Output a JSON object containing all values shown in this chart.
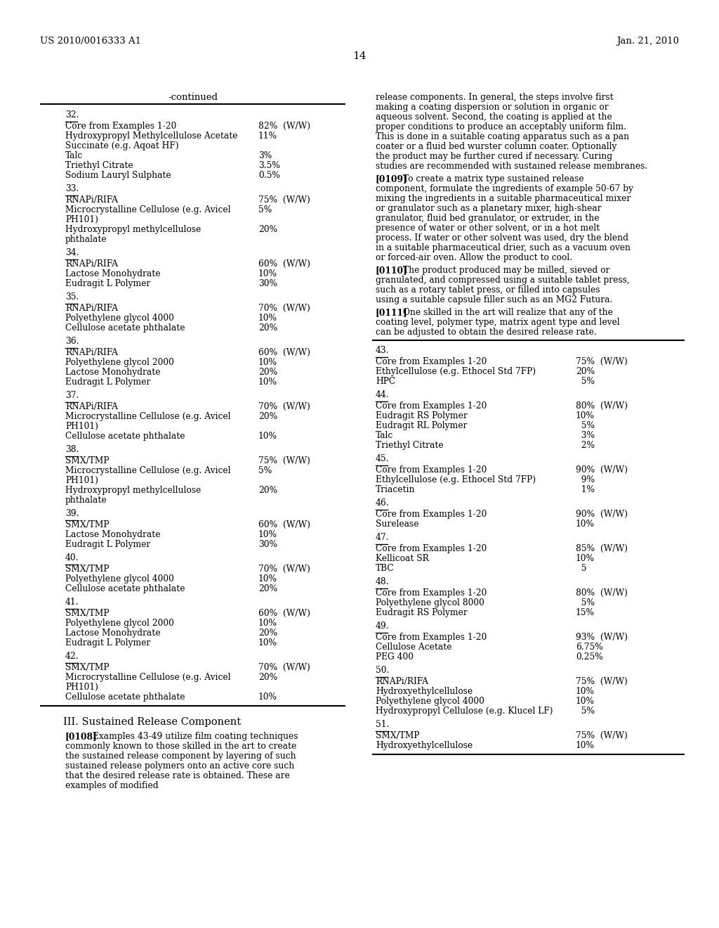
{
  "bg_color": "#ffffff",
  "header_left": "US 2010/0016333 A1",
  "header_right": "Jan. 21, 2010",
  "page_number": "14",
  "left_sections": [
    {
      "num": "32.",
      "items": [
        [
          "Core from Examples 1-20",
          "82%  (W/W)"
        ],
        [
          "Hydroxypropyl Methylcellulose Acetate",
          "11%"
        ],
        [
          "Succinate (e.g. Aqoat HF)",
          ""
        ],
        [
          "Talc",
          "3%"
        ],
        [
          "Triethyl Citrate",
          "3.5%"
        ],
        [
          "Sodium Lauryl Sulphate",
          "0.5%"
        ]
      ]
    },
    {
      "num": "33.",
      "items": [
        [
          "RNAPi/RIFA",
          "75%  (W/W)"
        ],
        [
          "Microcrystalline Cellulose (e.g. Avicel",
          "5%"
        ],
        [
          "PH101)",
          ""
        ],
        [
          "Hydroxypropyl methylcellulose",
          "20%"
        ],
        [
          "phthalate",
          ""
        ]
      ]
    },
    {
      "num": "34.",
      "items": [
        [
          "RNAPi/RIFA",
          "60%  (W/W)"
        ],
        [
          "Lactose Monohydrate",
          "10%"
        ],
        [
          "Eudragit L Polymer",
          "30%"
        ]
      ]
    },
    {
      "num": "35.",
      "items": [
        [
          "RNAPi/RIFA",
          "70%  (W/W)"
        ],
        [
          "Polyethylene glycol 4000",
          "10%"
        ],
        [
          "Cellulose acetate phthalate",
          "20%"
        ]
      ]
    },
    {
      "num": "36.",
      "items": [
        [
          "RNAPi/RIFA",
          "60%  (W/W)"
        ],
        [
          "Polyethylene glycol 2000",
          "10%"
        ],
        [
          "Lactose Monohydrate",
          "20%"
        ],
        [
          "Eudragit L Polymer",
          "10%"
        ]
      ]
    },
    {
      "num": "37.",
      "items": [
        [
          "RNAPi/RIFA",
          "70%  (W/W)"
        ],
        [
          "Microcrystalline Cellulose (e.g. Avicel",
          "20%"
        ],
        [
          "PH101)",
          ""
        ],
        [
          "Cellulose acetate phthalate",
          "10%"
        ]
      ]
    },
    {
      "num": "38.",
      "items": [
        [
          "SMX/TMP",
          "75%  (W/W)"
        ],
        [
          "Microcrystalline Cellulose (e.g. Avicel",
          "5%"
        ],
        [
          "PH101)",
          ""
        ],
        [
          "Hydroxypropyl methylcellulose",
          "20%"
        ],
        [
          "phthalate",
          ""
        ]
      ]
    },
    {
      "num": "39.",
      "items": [
        [
          "SMX/TMP",
          "60%  (W/W)"
        ],
        [
          "Lactose Monohydrate",
          "10%"
        ],
        [
          "Eudragit L Polymer",
          "30%"
        ]
      ]
    },
    {
      "num": "40.",
      "items": [
        [
          "SMX/TMP",
          "70%  (W/W)"
        ],
        [
          "Polyethylene glycol 4000",
          "10%"
        ],
        [
          "Cellulose acetate phthalate",
          "20%"
        ]
      ]
    },
    {
      "num": "41.",
      "items": [
        [
          "SMX/TMP",
          "60%  (W/W)"
        ],
        [
          "Polyethylene glycol 2000",
          "10%"
        ],
        [
          "Lactose Monohydrate",
          "20%"
        ],
        [
          "Eudragit L Polymer",
          "10%"
        ]
      ]
    },
    {
      "num": "42.",
      "items": [
        [
          "SMX/TMP",
          "70%  (W/W)"
        ],
        [
          "Microcrystalline Cellulose (e.g. Avicel",
          "20%"
        ],
        [
          "PH101)",
          ""
        ],
        [
          "Cellulose acetate phthalate",
          "10%"
        ]
      ]
    }
  ],
  "right_paras": [
    {
      "tag": "",
      "text": "release components. In general, the steps involve first making a coating dispersion or solution in organic or aqueous solvent. Second, the coating is applied at the proper conditions to produce an acceptably uniform film. This is done in a suitable coating apparatus such as a pan coater or a fluid bed wurster column coater. Optionally the product may be further cured if necessary. Curing studies are recommended with sustained release membranes."
    },
    {
      "tag": "[0109]",
      "text": "To create a matrix type sustained release component, formulate the ingredients of example 50-67 by mixing the ingredients in a suitable pharmaceutical mixer or granulator such as a planetary mixer, high-shear granulator, fluid bed granulator, or extruder, in the presence of water or other solvent, or in a hot melt process. If water or other solvent was used, dry the blend in a suitable pharmaceutical drier, such as a vacuum oven or forced-air oven. Allow the product to cool."
    },
    {
      "tag": "[0110]",
      "text": "The product produced may be milled, sieved or granulated, and compressed using a suitable tablet press, such as a rotary tablet press, or filled into capsules using a suitable capsule filler such as an MG2 Futura."
    },
    {
      "tag": "[0111]",
      "text": "One skilled in the art will realize that any of the coating level, polymer type, matrix agent type and level can be adjusted to obtain the desired release rate."
    }
  ],
  "right_sections": [
    {
      "num": "43.",
      "items": [
        [
          "Core from Examples 1-20",
          "75%  (W/W)"
        ],
        [
          "Ethylcellulose (e.g. Ethocel Std 7FP)",
          "20%"
        ],
        [
          "HPC",
          "  5%"
        ]
      ]
    },
    {
      "num": "44.",
      "items": [
        [
          "Core from Examples 1-20",
          "80%  (W/W)"
        ],
        [
          "Eudragit RS Polymer",
          "10%"
        ],
        [
          "Eudragit RL Polymer",
          "  5%"
        ],
        [
          "Talc",
          "  3%"
        ],
        [
          "Triethyl Citrate",
          "  2%"
        ]
      ]
    },
    {
      "num": "45.",
      "items": [
        [
          "Core from Examples 1-20",
          "90%  (W/W)"
        ],
        [
          "Ethylcellulose (e.g. Ethocel Std 7FP)",
          "  9%"
        ],
        [
          "Triacetin",
          "  1%"
        ]
      ]
    },
    {
      "num": "46.",
      "items": [
        [
          "Core from Examples 1-20",
          "90%  (W/W)"
        ],
        [
          "Surelease",
          "10%"
        ]
      ]
    },
    {
      "num": "47.",
      "items": [
        [
          "Core from Examples 1-20",
          "85%  (W/W)"
        ],
        [
          "Kellicoat SR",
          "10%"
        ],
        [
          "TBC",
          "  5"
        ]
      ]
    },
    {
      "num": "48.",
      "items": [
        [
          "Core from Examples 1-20",
          "80%  (W/W)"
        ],
        [
          "Polyethylene glycol 8000",
          "  5%"
        ],
        [
          "Eudragit RS Polymer",
          "15%"
        ]
      ]
    },
    {
      "num": "49.",
      "items": [
        [
          "Core from Examples 1-20",
          "93%  (W/W)"
        ],
        [
          "Cellulose Acetate",
          "6.75%"
        ],
        [
          "PEG 400",
          "0.25%"
        ]
      ]
    },
    {
      "num": "50.",
      "items": [
        [
          "RNAPi/RIFA",
          "75%  (W/W)"
        ],
        [
          "Hydroxyethylcellulose",
          "10%"
        ],
        [
          "Polyethylene glycol 4000",
          "10%"
        ],
        [
          "Hydroxypropyl Cellulose (e.g. Klucel LF)",
          "  5%"
        ]
      ]
    },
    {
      "num": "51.",
      "items": [
        [
          "SMX/TMP",
          "75%  (W/W)"
        ],
        [
          "Hydroxyethylcellulose",
          "10%"
        ]
      ]
    }
  ],
  "left_bottom_header": "III. Sustained Release Component",
  "left_bottom_tag": "[0108]",
  "left_bottom_text": "Examples 43-49 utilize film coating techniques commonly known to those skilled in the art to create the sustained release component by layering of such sustained release polymers onto an active core such that the desired release rate is obtained. These are examples of modified"
}
